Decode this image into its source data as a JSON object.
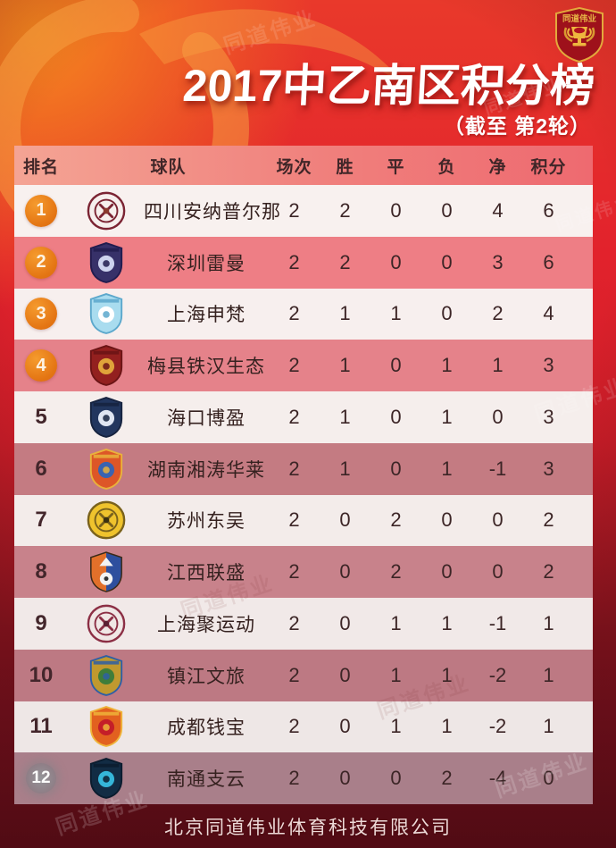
{
  "header": {
    "title": "2017中乙南区积分榜",
    "subtitle": "（截至 第2轮）",
    "badge_text": "同道伟业"
  },
  "watermark": "同道伟业",
  "colors": {
    "bg_top_orange": "#f6871f",
    "bg_red": "#e2222c",
    "bg_bottom_maroon": "#671019",
    "header_row_left": "#f4a494",
    "header_row_right": "#ee6a70",
    "rank_badge_orange": "#e47513",
    "white_row": "#f7f0ee",
    "pink_row": "#ee7e85"
  },
  "table": {
    "columns": [
      "排名",
      "球队",
      "场次",
      "胜",
      "平",
      "负",
      "净",
      "积分"
    ],
    "rows": [
      {
        "rank": "1",
        "badge": "orange",
        "team": "四川安纳普尔那",
        "played": "2",
        "win": "2",
        "draw": "0",
        "loss": "0",
        "gd": "4",
        "pts": "6",
        "logo": {
          "name": "sichuan-annapurna-crest",
          "shape": "circle",
          "colors": [
            "#f6efed",
            "#7b2433",
            "#8a3a2e"
          ]
        }
      },
      {
        "rank": "2",
        "badge": "orange",
        "team": "深圳雷曼",
        "played": "2",
        "win": "2",
        "draw": "0",
        "loss": "0",
        "gd": "3",
        "pts": "6",
        "logo": {
          "name": "shenzhen-ledman-crest",
          "shape": "shield",
          "colors": [
            "#373169",
            "#cdd3ee",
            "#211c4e"
          ]
        }
      },
      {
        "rank": "3",
        "badge": "orange",
        "team": "上海申梵",
        "played": "2",
        "win": "1",
        "draw": "1",
        "loss": "0",
        "gd": "2",
        "pts": "4",
        "logo": {
          "name": "shanghai-shenfan-crest",
          "shape": "shield",
          "colors": [
            "#a9dcef",
            "#ffffff",
            "#5ca8cc"
          ]
        }
      },
      {
        "rank": "4",
        "badge": "orange",
        "team": "梅县铁汉生态",
        "played": "2",
        "win": "1",
        "draw": "0",
        "loss": "1",
        "gd": "1",
        "pts": "3",
        "logo": {
          "name": "meixian-techand-crest",
          "shape": "shield",
          "colors": [
            "#93201f",
            "#e0a33a",
            "#6b1415"
          ]
        }
      },
      {
        "rank": "5",
        "badge": "none",
        "team": "海口博盈",
        "played": "2",
        "win": "1",
        "draw": "0",
        "loss": "1",
        "gd": "0",
        "pts": "3",
        "logo": {
          "name": "haikou-boying-crest",
          "shape": "shield",
          "colors": [
            "#22365e",
            "#dfe6f2",
            "#16233f"
          ]
        }
      },
      {
        "rank": "6",
        "badge": "none",
        "team": "湖南湘涛华莱",
        "played": "2",
        "win": "1",
        "draw": "0",
        "loss": "1",
        "gd": "-1",
        "pts": "3",
        "logo": {
          "name": "hunan-xiangtao-crest",
          "shape": "shield",
          "colors": [
            "#dd5627",
            "#3a63b0",
            "#e9b23c"
          ]
        }
      },
      {
        "rank": "7",
        "badge": "none",
        "team": "苏州东吴",
        "played": "2",
        "win": "0",
        "draw": "2",
        "loss": "0",
        "gd": "0",
        "pts": "2",
        "logo": {
          "name": "suzhou-dongwu-crest",
          "shape": "circle",
          "colors": [
            "#efc32d",
            "#7a621c",
            "#3a3010"
          ]
        }
      },
      {
        "rank": "8",
        "badge": "none",
        "team": "江西联盛",
        "played": "2",
        "win": "0",
        "draw": "2",
        "loss": "0",
        "gd": "0",
        "pts": "2",
        "logo": {
          "name": "jiangxi-liansheng-crest",
          "shape": "shield-split",
          "colors": [
            "#e2702a",
            "#2e4f9e",
            "#f3f3f3"
          ]
        }
      },
      {
        "rank": "9",
        "badge": "none",
        "team": "上海聚运动",
        "played": "2",
        "win": "0",
        "draw": "1",
        "loss": "1",
        "gd": "-1",
        "pts": "1",
        "logo": {
          "name": "shanghai-juyundong-crest",
          "shape": "circle",
          "colors": [
            "#f0e7e5",
            "#8c2f45",
            "#5b2033"
          ]
        }
      },
      {
        "rank": "10",
        "badge": "none",
        "team": "镇江文旅",
        "played": "2",
        "win": "0",
        "draw": "1",
        "loss": "1",
        "gd": "-2",
        "pts": "1",
        "logo": {
          "name": "zhenjiang-wenlv-crest",
          "shape": "shield",
          "colors": [
            "#c0992f",
            "#3f7d3a",
            "#2e5fa5"
          ]
        }
      },
      {
        "rank": "11",
        "badge": "none",
        "team": "成都钱宝",
        "played": "2",
        "win": "0",
        "draw": "1",
        "loss": "1",
        "gd": "-2",
        "pts": "1",
        "logo": {
          "name": "chengdu-qianbao-crest",
          "shape": "shield",
          "colors": [
            "#e2611f",
            "#c41e28",
            "#efb43a"
          ]
        }
      },
      {
        "rank": "12",
        "badge": "grey",
        "team": "南通支云",
        "played": "2",
        "win": "0",
        "draw": "0",
        "loss": "2",
        "gd": "-4",
        "pts": "0",
        "logo": {
          "name": "nantong-zhiyun-crest",
          "shape": "shield",
          "colors": [
            "#122c44",
            "#35b6d9",
            "#0b1c2e"
          ]
        }
      }
    ]
  },
  "footer": {
    "company": "北京同道伟业体育科技有限公司"
  }
}
